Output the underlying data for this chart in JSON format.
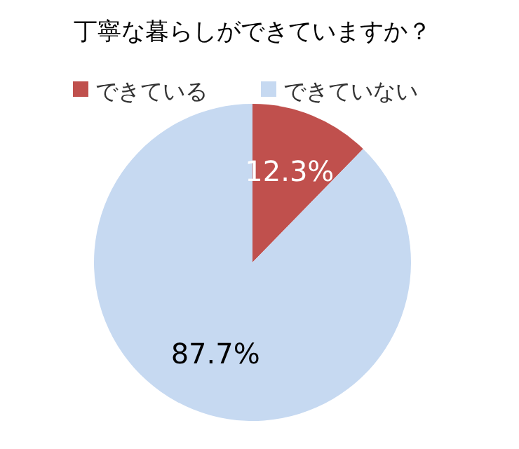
{
  "chart_data": {
    "type": "pie",
    "title": "丁寧な暮らしができていますか？",
    "categories": [
      "できている",
      "できていない"
    ],
    "values": [
      12.3,
      87.7
    ],
    "colors": [
      "#c0504d",
      "#c6d9f1"
    ],
    "legend": "top",
    "value_labels": [
      "12.3%",
      "87.7%"
    ]
  }
}
